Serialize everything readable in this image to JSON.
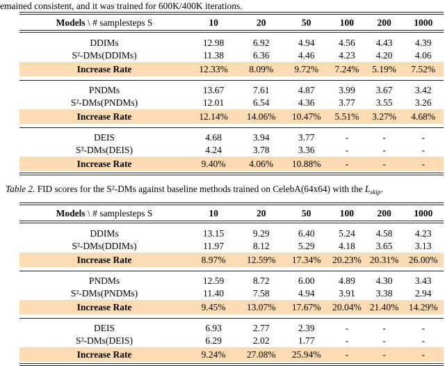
{
  "page": {
    "top_text": "emained consistent, and it was trained for 600K/400K iterations."
  },
  "caption": {
    "label": "Table 2.",
    "body": " FID scores for the S²-DMs against baseline methods trained on CelebA(64x64) with the ",
    "math_var": "L",
    "math_sub": "skip",
    "end": "."
  },
  "header": {
    "bold": "Models",
    "rest": " \\ # samplesteps S"
  },
  "columns": [
    "10",
    "20",
    "50",
    "100",
    "200",
    "1000"
  ],
  "highlight_color": "#fbdcb2",
  "tables": [
    {
      "name": "table-1",
      "groups": [
        {
          "rows": [
            {
              "label": "DDIMs",
              "label_bold": false,
              "values_bold": false,
              "highlight": false,
              "values": [
                "12.98",
                "6.92",
                "4.94",
                "4.56",
                "4.43",
                "4.39"
              ]
            },
            {
              "label": "S²-DMs(DDIMs)",
              "label_bold": false,
              "values_bold": true,
              "highlight": false,
              "values": [
                "11.38",
                "6.36",
                "4.46",
                "4.23",
                "4.20",
                "4.06"
              ]
            },
            {
              "label": "Increase Rate",
              "label_bold": true,
              "values_bold": false,
              "highlight": true,
              "values": [
                "12.33%",
                "8.09%",
                "9.72%",
                "7.24%",
                "5.19%",
                "7.52%"
              ]
            }
          ]
        },
        {
          "rows": [
            {
              "label": "PNDMs",
              "label_bold": false,
              "values_bold": false,
              "highlight": false,
              "values": [
                "13.67",
                "7.61",
                "4.87",
                "3.99",
                "3.67",
                "3.42"
              ]
            },
            {
              "label": "S²-DMs(PNDMs)",
              "label_bold": false,
              "values_bold": true,
              "highlight": false,
              "values": [
                "12.01",
                "6.54",
                "4.36",
                "3.77",
                "3.55",
                "3.26"
              ]
            },
            {
              "label": "Increase Rate",
              "label_bold": true,
              "values_bold": false,
              "highlight": true,
              "values": [
                "12.14%",
                "14.06%",
                "10.47%",
                "5.51%",
                "3.27%",
                "4.68%"
              ]
            }
          ]
        },
        {
          "rows": [
            {
              "label": "DEIS",
              "label_bold": false,
              "values_bold": false,
              "highlight": false,
              "values": [
                "4.68",
                "3.94",
                "3.77",
                "-",
                "-",
                "-"
              ]
            },
            {
              "label": "S²-DMs(DEIS)",
              "label_bold": false,
              "values_bold": true,
              "highlight": false,
              "values": [
                "4.24",
                "3.78",
                "3.36",
                "-",
                "-",
                "-"
              ]
            },
            {
              "label": "Increase Rate",
              "label_bold": true,
              "values_bold": false,
              "highlight": true,
              "values": [
                "9.40%",
                "4.06%",
                "10.88%",
                "-",
                "-",
                "-"
              ]
            }
          ]
        }
      ]
    },
    {
      "name": "table-2",
      "groups": [
        {
          "rows": [
            {
              "label": "DDIMs",
              "label_bold": false,
              "values_bold": false,
              "highlight": false,
              "values": [
                "13.15",
                "9.29",
                "6.40",
                "5.24",
                "4.58",
                "4.23"
              ]
            },
            {
              "label": "S²-DMs(DDIMs)",
              "label_bold": false,
              "values_bold": true,
              "highlight": false,
              "values": [
                "11.97",
                "8.12",
                "5.29",
                "4.18",
                "3.65",
                "3.13"
              ]
            },
            {
              "label": "Increase Rate",
              "label_bold": true,
              "values_bold": false,
              "highlight": true,
              "values": [
                "8.97%",
                "12.59%",
                "17.34%",
                "20.23%",
                "20.31%",
                "26.00%"
              ]
            }
          ]
        },
        {
          "rows": [
            {
              "label": "PNDMs",
              "label_bold": false,
              "values_bold": false,
              "highlight": false,
              "values": [
                "12.59",
                "8.72",
                "6.00",
                "4.89",
                "4.30",
                "3.43"
              ]
            },
            {
              "label": "S²-DMs(PNDMs)",
              "label_bold": false,
              "values_bold": true,
              "highlight": false,
              "values": [
                "11.40",
                "7.58",
                "4.94",
                "3.91",
                "3.38",
                "2.94"
              ]
            },
            {
              "label": "Increase Rate",
              "label_bold": true,
              "values_bold": false,
              "highlight": true,
              "values": [
                "9.45%",
                "13.07%",
                "17.67%",
                "20.04%",
                "21.40%",
                "14.29%"
              ]
            }
          ]
        },
        {
          "rows": [
            {
              "label": "DEIS",
              "label_bold": false,
              "values_bold": false,
              "highlight": false,
              "values": [
                "6.93",
                "2.77",
                "2.39",
                "-",
                "-",
                "-"
              ]
            },
            {
              "label": "S²-DMs(DEIS)",
              "label_bold": false,
              "values_bold": true,
              "highlight": false,
              "values": [
                "6.29",
                "2.02",
                "1.77",
                "-",
                "-",
                "-"
              ]
            },
            {
              "label": "Increase Rate",
              "label_bold": true,
              "values_bold": false,
              "highlight": true,
              "values": [
                "9.24%",
                "27.08%",
                "25.94%",
                "-",
                "-",
                "-"
              ]
            }
          ]
        }
      ]
    }
  ]
}
